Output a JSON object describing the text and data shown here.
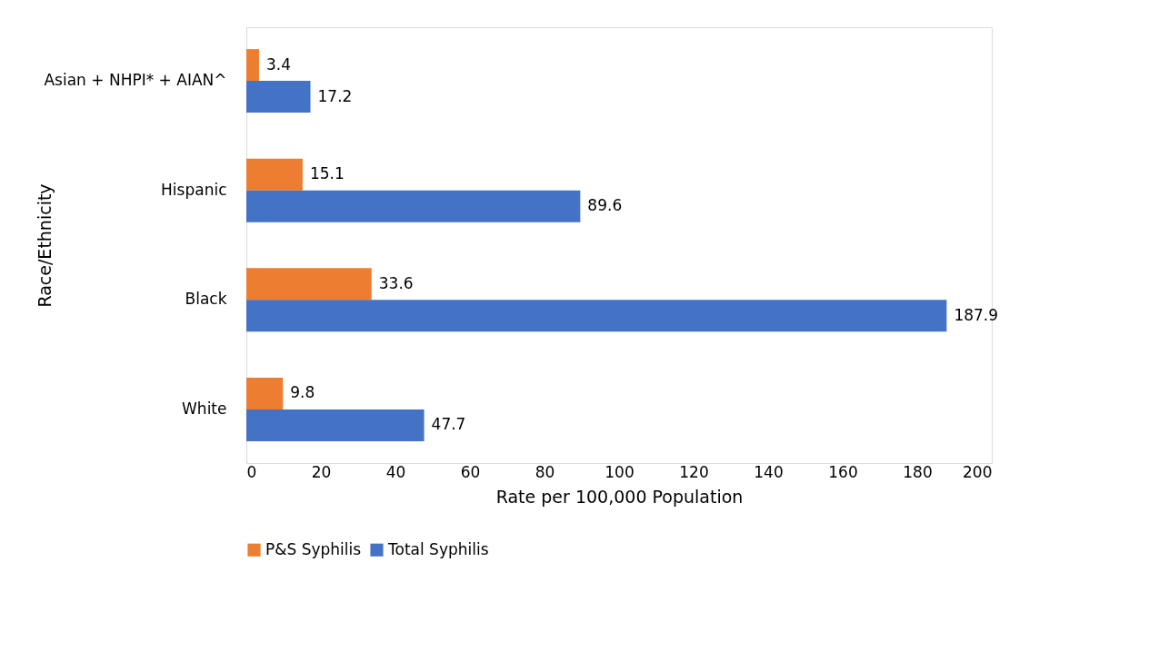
{
  "chart_data": {
    "type": "bar",
    "orientation": "horizontal",
    "xlabel": "Rate per 100,000 Population",
    "ylabel": "Race/Ethnicity",
    "categories": [
      "Asian + NHPI* + AIAN^",
      "Hispanic",
      "Black",
      "White"
    ],
    "series": [
      {
        "name": "P&S Syphilis",
        "color": "#ed7d31",
        "values": [
          3.4,
          15.1,
          33.6,
          9.8
        ]
      },
      {
        "name": "Total Syphilis",
        "color": "#4472c4",
        "values": [
          17.2,
          89.6,
          187.9,
          47.7
        ]
      }
    ],
    "xlim": [
      0,
      200
    ],
    "xticks": [
      0,
      20,
      40,
      60,
      80,
      100,
      120,
      140,
      160,
      180,
      200
    ],
    "grid": false,
    "legend": "bottom",
    "data_labels": true
  }
}
